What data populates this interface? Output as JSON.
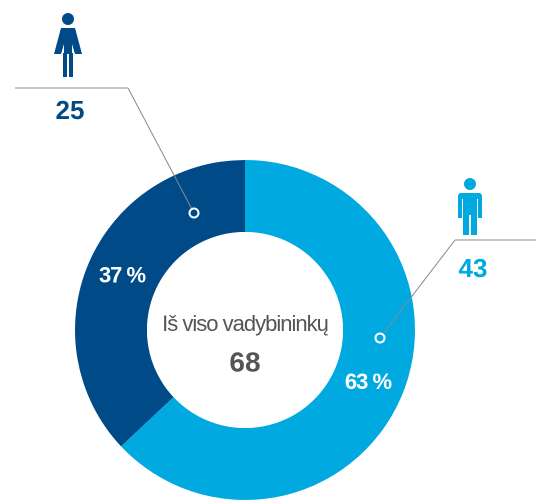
{
  "chart_data": {
    "type": "donut",
    "values": [
      37,
      63
    ],
    "value_labels": [
      "37 %",
      "63 %"
    ],
    "colors": [
      "#004b87",
      "#00a9e0"
    ],
    "counts": [
      25,
      43
    ],
    "center_label": "Iš viso vadybininkų",
    "total": 68
  }
}
